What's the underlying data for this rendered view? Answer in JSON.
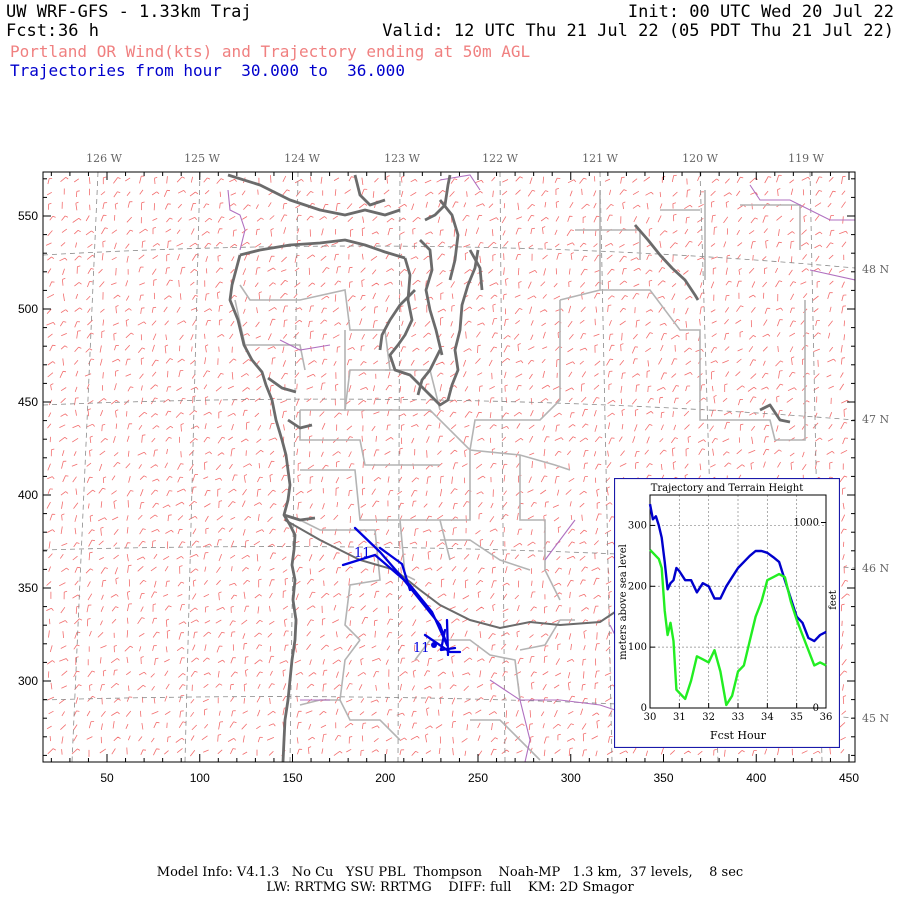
{
  "header": {
    "title": "UW WRF-GFS - 1.33km Traj",
    "init": "Init: 00 UTC Wed 20 Jul 22",
    "fcst_label": "Fcst:",
    "fcst_value": "36 h",
    "valid": "Valid: 12 UTC Thu 21 Jul 22 (05 PDT Thu 21 Jul 22)",
    "subtitle": "Portland OR Wind(kts) and Trajectory ending at 50m AGL",
    "traj_range": "Trajectories from hour  30.000 to  36.000"
  },
  "map": {
    "x_ticks": [
      "50",
      "100",
      "150",
      "200",
      "250",
      "300",
      "350",
      "400",
      "450"
    ],
    "y_ticks": [
      "300",
      "350",
      "400",
      "450",
      "500",
      "550"
    ],
    "lon_labels": [
      "126 W",
      "125 W",
      "124 W",
      "123 W",
      "122 W",
      "121 W",
      "120 W",
      "119 W"
    ],
    "lat_labels": [
      "48 N",
      "47 N",
      "46 N",
      "45 N"
    ],
    "traj_labels": [
      "11",
      "11"
    ],
    "colors": {
      "wind_barb": "#f26d6d",
      "coastline": "#6b6b6b",
      "state_border": "#a8a8a8",
      "county_border": "#b4b4b4",
      "grid": "#8a8a8a",
      "trajectory": "#0000dd",
      "purple": "#b070c0"
    }
  },
  "inset": {
    "title": "Trajectory and Terrain Height",
    "ylabel_left": "meters above sea level",
    "ylabel_right": "feet",
    "xlabel": "Fcst Hour",
    "y_left_ticks": [
      "0",
      "100",
      "200",
      "300"
    ],
    "y_right_ticks": [
      "0",
      "1000"
    ],
    "x_ticks": [
      "30",
      "31",
      "32",
      "33",
      "34",
      "35",
      "36"
    ],
    "chart_data": {
      "type": "line",
      "xlabel": "Fcst Hour",
      "ylabel": "meters above sea level",
      "xlim": [
        30,
        36
      ],
      "ylim": [
        0,
        350
      ],
      "series": [
        {
          "color": "#0000cc",
          "x": [
            30.0,
            30.1,
            30.2,
            30.3,
            30.4,
            30.5,
            30.6,
            30.7,
            30.8,
            30.9,
            31.0,
            31.2,
            31.4,
            31.6,
            31.8,
            32.0,
            32.2,
            32.4,
            32.6,
            32.8,
            33.0,
            33.2,
            33.4,
            33.6,
            33.8,
            34.0,
            34.2,
            34.4,
            34.6,
            34.8,
            35.0,
            35.2,
            35.4,
            35.6,
            35.8,
            36.0
          ],
          "y": [
            335,
            310,
            315,
            300,
            280,
            240,
            195,
            205,
            210,
            230,
            225,
            210,
            210,
            190,
            205,
            200,
            180,
            180,
            200,
            215,
            230,
            240,
            250,
            258,
            258,
            255,
            248,
            240,
            210,
            180,
            150,
            140,
            115,
            110,
            120,
            125
          ]
        },
        {
          "color": "#22ee22",
          "x": [
            30.0,
            30.1,
            30.2,
            30.3,
            30.4,
            30.5,
            30.6,
            30.7,
            30.8,
            30.9,
            31.0,
            31.2,
            31.4,
            31.6,
            31.8,
            32.0,
            32.2,
            32.4,
            32.6,
            32.8,
            33.0,
            33.2,
            33.4,
            33.6,
            33.8,
            34.0,
            34.2,
            34.4,
            34.6,
            34.8,
            35.0,
            35.2,
            35.4,
            35.6,
            35.8,
            36.0
          ],
          "y": [
            260,
            255,
            250,
            245,
            230,
            160,
            120,
            140,
            110,
            30,
            25,
            15,
            45,
            85,
            80,
            75,
            95,
            60,
            5,
            20,
            60,
            70,
            110,
            150,
            175,
            210,
            215,
            220,
            215,
            175,
            145,
            120,
            95,
            70,
            75,
            70
          ]
        }
      ]
    }
  },
  "footer": {
    "line1": "Model Info: V4.1.3   No Cu   YSU PBL  Thompson    Noah-MP   1.3 km,  37 levels,    8 sec",
    "line2": "LW: RRTMG SW: RRTMG    DIFF: full    KM: 2D Smagor"
  }
}
